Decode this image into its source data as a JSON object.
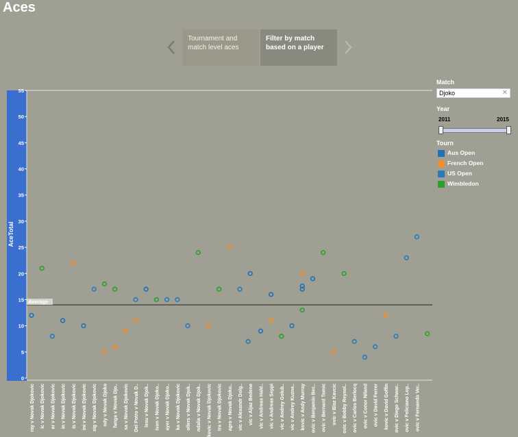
{
  "page": {
    "title": "Aces"
  },
  "story": {
    "points": [
      "Tournament and match level aces",
      "Filter by match based on a player"
    ],
    "active_index": 1
  },
  "filters": {
    "match_label": "Match",
    "match_value": "Djoko",
    "year_label": "Year",
    "year_min": "2011",
    "year_max": "2015",
    "year_range": [
      2011,
      2015
    ],
    "tourn_label": "Tourn",
    "legend": [
      {
        "name": "Aus Open",
        "color": "#2171b5"
      },
      {
        "name": "French Open",
        "color": "#f28e2b"
      },
      {
        "name": "US Open",
        "color": "#2b7bba"
      },
      {
        "name": "Wimbledon",
        "color": "#2ca02c"
      }
    ]
  },
  "chart_data": {
    "type": "scatter",
    "ylabel": "AceTotal",
    "ylim": [
      0,
      55
    ],
    "yticks": [
      "0",
      "5",
      "10",
      "15",
      "20",
      "25",
      "30",
      "35",
      "40",
      "45",
      "50",
      "55"
    ],
    "reference_line": {
      "label": "Average",
      "value": 14
    },
    "categories": [
      "ray v Novak Djokovic",
      "ic v Novak Djokovic",
      "er v Novak Djokovic",
      "in v Novak Djokovic",
      "is v Novak Djokovic",
      "ini v Novak Djokovic",
      "sig v Novak Djokovic",
      "ndy v Novak Djoko",
      "fanga v Novak Djo..",
      "sa v Novak Djokovic",
      "Del Potro v Novak D..",
      "lesu v Novak Djok..",
      "ison v Novak Djoko..",
      "ayer v Novak Djoko..",
      "ka v Novak Djokovic",
      "ollers v Novak Djok..",
      "ndalia v Novak Djok..",
      "kovic v Novak Djokovic",
      "tra v Novak Djokovic",
      "agro v Novak Djoko..",
      "vic v Alexandr Dolg..",
      "vic v Aljaz Bedene",
      "vic v Andreas Hald..",
      "vic v Andreas Seppi",
      "vic v Andrey Golub..",
      "vic v Andrey Kuzne..",
      "kovic v Andy Murray",
      "ovic v Benjamin Bec..",
      "ovic v Bernard Tomic",
      "ovic v Blaz Kavcic",
      "ovic v Bobby Reynol..",
      "ovic v Carlos Berlocq",
      "ovic v Conor Niland",
      "ovic v David Ferrer",
      "kovic v David Goffin",
      "ovic v Diego Schwar..",
      "ovic v Feliciano Lop..",
      "ovic v Fernando Ver.."
    ],
    "series": [
      {
        "name": "Aus Open",
        "points": [
          [
            0,
            12
          ],
          [
            3,
            11
          ],
          [
            5,
            10
          ],
          [
            11,
            17
          ],
          [
            21,
            20
          ],
          [
            22,
            9
          ],
          [
            23,
            16
          ],
          [
            25,
            10
          ],
          [
            26,
            17
          ],
          [
            26,
            17.6
          ],
          [
            27,
            19
          ]
        ]
      },
      {
        "name": "French Open",
        "points": [
          [
            4,
            22
          ],
          [
            7,
            5
          ],
          [
            8,
            6
          ],
          [
            9,
            9
          ],
          [
            10,
            11
          ],
          [
            17,
            10
          ],
          [
            19,
            25
          ],
          [
            23,
            11
          ],
          [
            26,
            20
          ],
          [
            29,
            5
          ],
          [
            34,
            12
          ]
        ]
      },
      {
        "name": "US Open",
        "points": [
          [
            2,
            8
          ],
          [
            6,
            17
          ],
          [
            10,
            15
          ],
          [
            13,
            15
          ],
          [
            14,
            15
          ],
          [
            15,
            10
          ],
          [
            20,
            17
          ],
          [
            20.8,
            7
          ],
          [
            31,
            7
          ],
          [
            32,
            4
          ],
          [
            33,
            6
          ],
          [
            35,
            8
          ],
          [
            36,
            23
          ],
          [
            37,
            27
          ]
        ]
      },
      {
        "name": "Wimbledon",
        "points": [
          [
            1,
            21
          ],
          [
            7,
            18
          ],
          [
            8,
            17
          ],
          [
            12,
            15
          ],
          [
            16,
            24
          ],
          [
            18,
            17
          ],
          [
            24,
            8
          ],
          [
            26,
            13
          ],
          [
            28,
            24
          ],
          [
            30,
            20
          ],
          [
            38,
            8.5
          ]
        ]
      }
    ]
  }
}
